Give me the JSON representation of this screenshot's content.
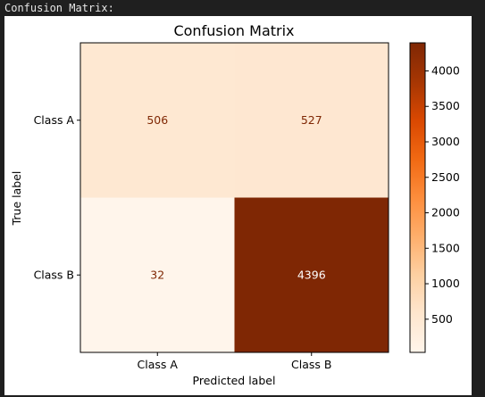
{
  "output_label": "Confusion Matrix:",
  "chart_data": {
    "type": "heatmap",
    "title": "Confusion Matrix",
    "xlabel": "Predicted label",
    "ylabel": "True label",
    "x_categories": [
      "Class A",
      "Class B"
    ],
    "y_categories": [
      "Class A",
      "Class B"
    ],
    "values": [
      [
        506,
        527
      ],
      [
        32,
        4396
      ]
    ],
    "colormap": "Oranges",
    "colorbar": {
      "min": 32,
      "max": 4396,
      "ticks": [
        500,
        1000,
        1500,
        2000,
        2500,
        3000,
        3500,
        4000
      ]
    },
    "cell_text_color_light": "#7f2704",
    "cell_text_color_dark": "#ffffff"
  }
}
